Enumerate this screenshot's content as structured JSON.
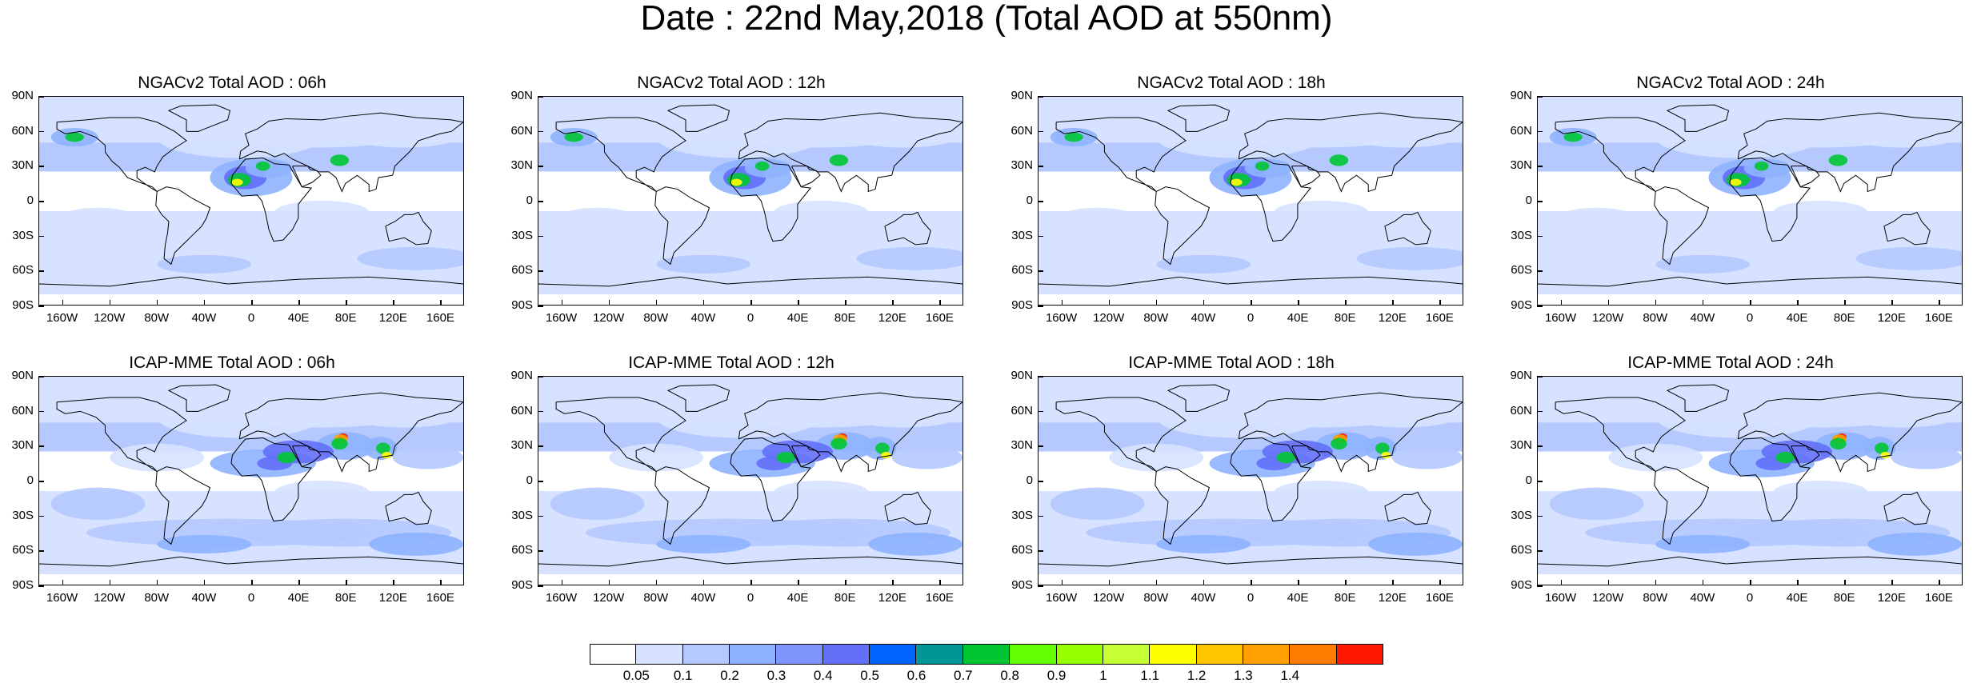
{
  "title": "Date : 22nd May,2018 (Total AOD at 550nm)",
  "axes": {
    "lat_labels": [
      "90N",
      "60N",
      "30N",
      "0",
      "30S",
      "60S",
      "90S"
    ],
    "lon_labels": [
      "160W",
      "120W",
      "80W",
      "40W",
      "0",
      "40E",
      "80E",
      "120E",
      "160E"
    ]
  },
  "panels": [
    {
      "title": "NGACv2 Total AOD : 06h",
      "model": "NGACv2",
      "hour": "06h"
    },
    {
      "title": "NGACv2 Total AOD : 12h",
      "model": "NGACv2",
      "hour": "12h"
    },
    {
      "title": "NGACv2 Total AOD : 18h",
      "model": "NGACv2",
      "hour": "18h"
    },
    {
      "title": "NGACv2 Total AOD : 24h",
      "model": "NGACv2",
      "hour": "24h"
    },
    {
      "title": "ICAP-MME Total AOD : 06h",
      "model": "ICAP-MME",
      "hour": "06h"
    },
    {
      "title": "ICAP-MME Total AOD : 12h",
      "model": "ICAP-MME",
      "hour": "12h"
    },
    {
      "title": "ICAP-MME Total AOD : 18h",
      "model": "ICAP-MME",
      "hour": "18h"
    },
    {
      "title": "ICAP-MME Total AOD : 24h",
      "model": "ICAP-MME",
      "hour": "24h"
    }
  ],
  "colorbar": {
    "labels": [
      "0.05",
      "0.1",
      "0.2",
      "0.3",
      "0.4",
      "0.5",
      "0.6",
      "0.7",
      "0.8",
      "0.9",
      "1",
      "1.1",
      "1.2",
      "1.3",
      "1.4"
    ],
    "colors": [
      "#ffffff",
      "#d6e2ff",
      "#b5c9ff",
      "#8eb2ff",
      "#7f96ff",
      "#6370f9",
      "#0063ff",
      "#009696",
      "#00c633",
      "#63ff00",
      "#96ff00",
      "#c6ff33",
      "#ffff00",
      "#ffc600",
      "#ffa000",
      "#ff7c00",
      "#ff1900"
    ]
  },
  "map_colors": {
    "background": "#ffffff",
    "low": "#d6e2ff",
    "mid": "#b5c9ff",
    "mid2": "#8eb2ff",
    "dust": "#6370f9",
    "green": "#00c633",
    "yellow": "#ffff00",
    "orange": "#ffa000",
    "red": "#ff1900",
    "coast": "#000000"
  }
}
